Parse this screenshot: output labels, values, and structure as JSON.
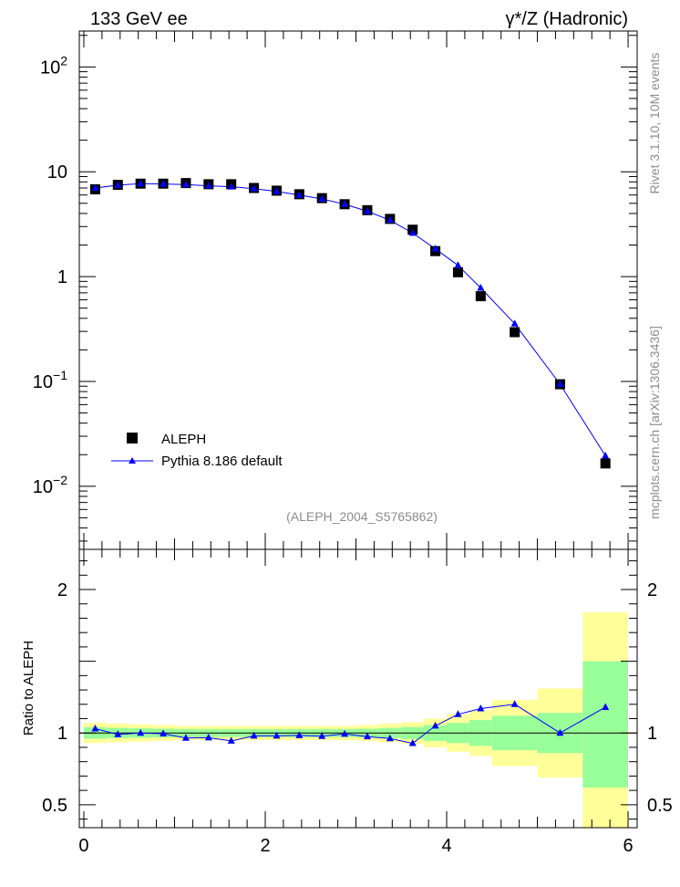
{
  "header": {
    "left": "133 GeV ee",
    "right": "γ*/Z (Hadronic)"
  },
  "side_labels": {
    "rivet": "Rivet 3.1.10, 10M events",
    "mcplots": "mcplots.cern.ch [arXiv:1306.3436]"
  },
  "analysis_label": "(ALEPH_2004_S5765862)",
  "colors": {
    "data": "#000000",
    "mc": "#0000ff",
    "band_outer": "#ffff99",
    "band_inner": "#99ff99"
  },
  "chart_data": [
    {
      "type": "scatter",
      "panel": "main",
      "yscale": "log",
      "xlim": [
        -0.05,
        6.1
      ],
      "ylim": [
        0.0025,
        220
      ],
      "ytick_labels": [
        {
          "value": 0.01,
          "base": "10",
          "exp": "−2"
        },
        {
          "value": 0.1,
          "base": "10",
          "exp": "−1"
        },
        {
          "value": 1,
          "text": "1"
        },
        {
          "value": 10,
          "text": "10"
        },
        {
          "value": 100,
          "base": "10",
          "exp": "2"
        }
      ],
      "legend_position": "bottom-left",
      "series": [
        {
          "name": "ALEPH",
          "marker": "square",
          "x": [
            0.125,
            0.375,
            0.625,
            0.875,
            1.125,
            1.375,
            1.625,
            1.875,
            2.125,
            2.375,
            2.625,
            2.875,
            3.125,
            3.375,
            3.625,
            3.875,
            4.125,
            4.375,
            4.75,
            5.25,
            5.75
          ],
          "y": [
            6.8,
            7.5,
            7.7,
            7.7,
            7.8,
            7.6,
            7.6,
            7.0,
            6.6,
            6.1,
            5.6,
            4.9,
            4.3,
            3.55,
            2.8,
            1.75,
            1.1,
            0.65,
            0.295,
            0.094,
            0.0165
          ]
        },
        {
          "name": "Pythia 8.186 default",
          "marker": "triangle",
          "x": [
            0.125,
            0.375,
            0.625,
            0.875,
            1.125,
            1.375,
            1.625,
            1.875,
            2.125,
            2.375,
            2.625,
            2.875,
            3.125,
            3.375,
            3.625,
            3.875,
            4.125,
            4.375,
            4.75,
            5.25,
            5.75
          ],
          "y": [
            7.0,
            7.45,
            7.7,
            7.65,
            7.55,
            7.35,
            7.2,
            6.9,
            6.5,
            6.0,
            5.5,
            4.9,
            4.2,
            3.45,
            2.6,
            1.84,
            1.28,
            0.78,
            0.355,
            0.094,
            0.0195
          ]
        }
      ]
    },
    {
      "type": "line",
      "panel": "ratio",
      "ylabel": "Ratio to ALEPH",
      "xlim": [
        -0.05,
        6.1
      ],
      "ylim": [
        0.34,
        2.28
      ],
      "yticks": [
        0.5,
        1,
        2
      ],
      "ytick_labels": [
        "0.5",
        "1",
        "2"
      ],
      "xticks": [
        0,
        2,
        4,
        6
      ],
      "xtick_labels": [
        "0",
        "2",
        "4",
        "6"
      ],
      "reference_line": 1,
      "bins": [
        {
          "lo": 0.0,
          "hi": 0.25,
          "outer": [
            0.93,
            1.07
          ],
          "inner": [
            0.96,
            1.04
          ]
        },
        {
          "lo": 0.25,
          "hi": 0.5,
          "outer": [
            0.935,
            1.065
          ],
          "inner": [
            0.965,
            1.035
          ]
        },
        {
          "lo": 0.5,
          "hi": 0.75,
          "outer": [
            0.94,
            1.06
          ],
          "inner": [
            0.967,
            1.033
          ]
        },
        {
          "lo": 0.75,
          "hi": 1.0,
          "outer": [
            0.945,
            1.055
          ],
          "inner": [
            0.97,
            1.03
          ]
        },
        {
          "lo": 1.0,
          "hi": 1.25,
          "outer": [
            0.95,
            1.05
          ],
          "inner": [
            0.972,
            1.028
          ]
        },
        {
          "lo": 1.25,
          "hi": 1.5,
          "outer": [
            0.95,
            1.05
          ],
          "inner": [
            0.972,
            1.028
          ]
        },
        {
          "lo": 1.5,
          "hi": 1.75,
          "outer": [
            0.95,
            1.05
          ],
          "inner": [
            0.972,
            1.028
          ]
        },
        {
          "lo": 1.75,
          "hi": 2.0,
          "outer": [
            0.95,
            1.05
          ],
          "inner": [
            0.972,
            1.028
          ]
        },
        {
          "lo": 2.0,
          "hi": 2.25,
          "outer": [
            0.95,
            1.05
          ],
          "inner": [
            0.972,
            1.028
          ]
        },
        {
          "lo": 2.25,
          "hi": 2.5,
          "outer": [
            0.95,
            1.05
          ],
          "inner": [
            0.972,
            1.028
          ]
        },
        {
          "lo": 2.5,
          "hi": 2.75,
          "outer": [
            0.95,
            1.05
          ],
          "inner": [
            0.972,
            1.028
          ]
        },
        {
          "lo": 2.75,
          "hi": 3.0,
          "outer": [
            0.95,
            1.05
          ],
          "inner": [
            0.972,
            1.028
          ]
        },
        {
          "lo": 3.0,
          "hi": 3.25,
          "outer": [
            0.945,
            1.055
          ],
          "inner": [
            0.97,
            1.03
          ]
        },
        {
          "lo": 3.25,
          "hi": 3.5,
          "outer": [
            0.935,
            1.065
          ],
          "inner": [
            0.965,
            1.035
          ]
        },
        {
          "lo": 3.5,
          "hi": 3.75,
          "outer": [
            0.925,
            1.075
          ],
          "inner": [
            0.958,
            1.042
          ]
        },
        {
          "lo": 3.75,
          "hi": 4.0,
          "outer": [
            0.9,
            1.1
          ],
          "inner": [
            0.945,
            1.055
          ]
        },
        {
          "lo": 4.0,
          "hi": 4.25,
          "outer": [
            0.87,
            1.13
          ],
          "inner": [
            0.93,
            1.07
          ]
        },
        {
          "lo": 4.25,
          "hi": 4.5,
          "outer": [
            0.84,
            1.16
          ],
          "inner": [
            0.91,
            1.09
          ]
        },
        {
          "lo": 4.5,
          "hi": 5.0,
          "outer": [
            0.77,
            1.23
          ],
          "inner": [
            0.88,
            1.12
          ]
        },
        {
          "lo": 5.0,
          "hi": 5.5,
          "outer": [
            0.69,
            1.31
          ],
          "inner": [
            0.86,
            1.14
          ]
        },
        {
          "lo": 5.5,
          "hi": 6.0,
          "outer": [
            0.34,
            1.84
          ],
          "inner": [
            0.62,
            1.5
          ]
        }
      ],
      "series": [
        {
          "name": "Pythia 8.186 default",
          "x": [
            0.125,
            0.375,
            0.625,
            0.875,
            1.125,
            1.375,
            1.625,
            1.875,
            2.125,
            2.375,
            2.625,
            2.875,
            3.125,
            3.375,
            3.625,
            3.875,
            4.125,
            4.375,
            4.75,
            5.25,
            5.75
          ],
          "y": [
            1.03,
            0.99,
            1.0,
            0.995,
            0.965,
            0.967,
            0.945,
            0.98,
            0.98,
            0.983,
            0.978,
            0.993,
            0.975,
            0.962,
            0.928,
            1.05,
            1.13,
            1.17,
            1.2,
            1.0,
            1.18
          ]
        }
      ]
    }
  ]
}
